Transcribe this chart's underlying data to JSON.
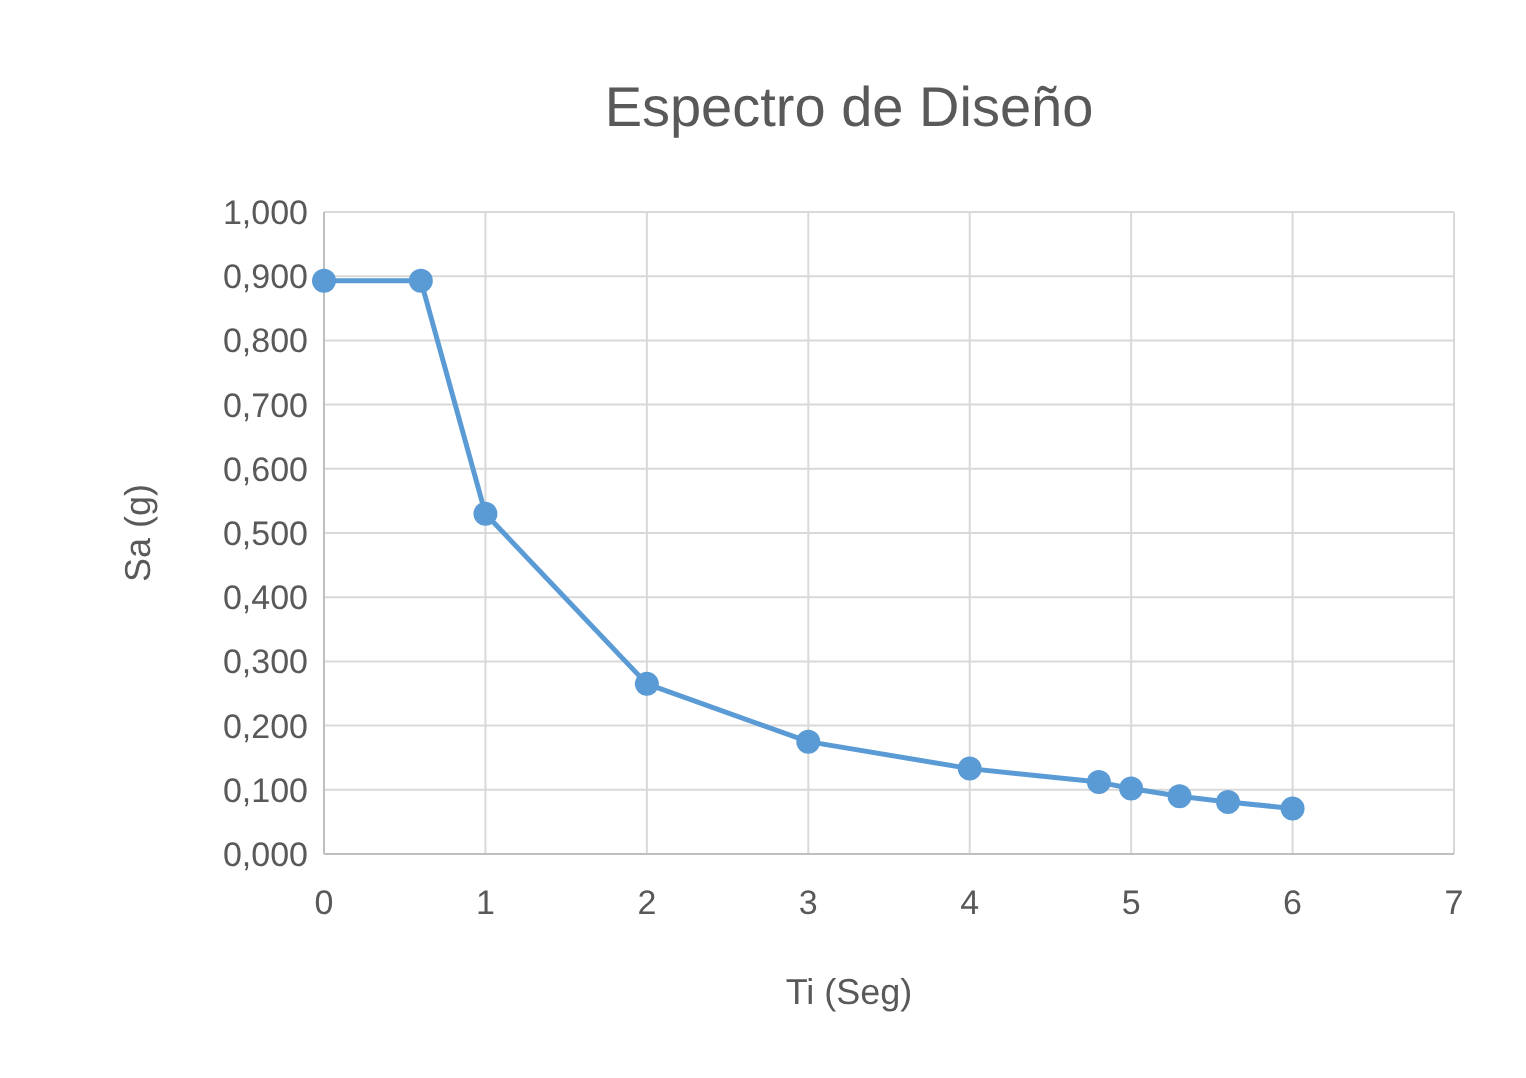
{
  "chart_data": {
    "type": "line",
    "title": "Espectro de Diseño",
    "xlabel": "Ti (Seg)",
    "ylabel": "Sa (g)",
    "x": [
      0,
      0.6,
      1,
      2,
      3,
      4,
      4.8,
      5,
      5.3,
      5.6,
      6
    ],
    "series": [
      {
        "color": "#5b9bd5",
        "values": [
          0.893,
          0.893,
          0.53,
          0.265,
          0.175,
          0.133,
          0.112,
          0.102,
          0.09,
          0.081,
          0.071
        ]
      }
    ],
    "xlim": [
      0,
      7
    ],
    "xticks": [
      0,
      1,
      2,
      3,
      4,
      5,
      6,
      7
    ],
    "ylim": [
      0,
      1
    ],
    "yticks": [
      {
        "value": 0,
        "label": "0,000"
      },
      {
        "value": 0.1,
        "label": "0,100"
      },
      {
        "value": 0.2,
        "label": "0,200"
      },
      {
        "value": 0.3,
        "label": "0,300"
      },
      {
        "value": 0.4,
        "label": "0,400"
      },
      {
        "value": 0.5,
        "label": "0,500"
      },
      {
        "value": 0.6,
        "label": "0,600"
      },
      {
        "value": 0.7,
        "label": "0,700"
      },
      {
        "value": 0.8,
        "label": "0,800"
      },
      {
        "value": 0.9,
        "label": "0,900"
      },
      {
        "value": 1,
        "label": "1,000"
      }
    ],
    "grid": true,
    "marker": "circle",
    "line_style": "solid"
  }
}
